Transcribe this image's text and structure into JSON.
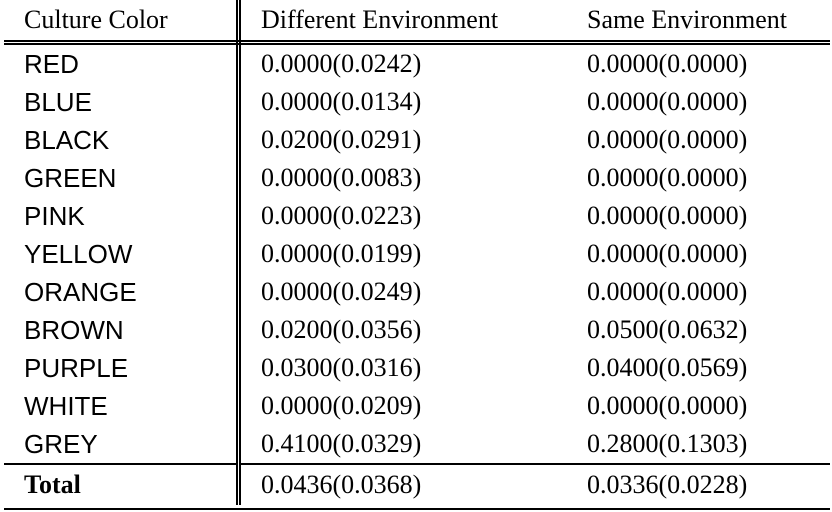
{
  "table": {
    "headers": [
      "Culture Color",
      "Different Environment",
      "Same Environment"
    ],
    "rows": [
      {
        "color": "RED",
        "different": "0.0000(0.0242)",
        "same": "0.0000(0.0000)"
      },
      {
        "color": "BLUE",
        "different": "0.0000(0.0134)",
        "same": "0.0000(0.0000)"
      },
      {
        "color": "BLACK",
        "different": "0.0200(0.0291)",
        "same": "0.0000(0.0000)"
      },
      {
        "color": "GREEN",
        "different": "0.0000(0.0083)",
        "same": "0.0000(0.0000)"
      },
      {
        "color": "PINK",
        "different": "0.0000(0.0223)",
        "same": "0.0000(0.0000)"
      },
      {
        "color": "YELLOW",
        "different": "0.0000(0.0199)",
        "same": "0.0000(0.0000)"
      },
      {
        "color": "ORANGE",
        "different": "0.0000(0.0249)",
        "same": "0.0000(0.0000)"
      },
      {
        "color": "BROWN",
        "different": "0.0200(0.0356)",
        "same": "0.0500(0.0632)"
      },
      {
        "color": "PURPLE",
        "different": "0.0300(0.0316)",
        "same": "0.0400(0.0569)"
      },
      {
        "color": "WHITE",
        "different": "0.0000(0.0209)",
        "same": "0.0000(0.0000)"
      },
      {
        "color": "GREY",
        "different": "0.4100(0.0329)",
        "same": "0.2800(0.1303)"
      }
    ],
    "total": {
      "label": "Total",
      "different": "0.0436(0.0368)",
      "same": "0.0336(0.0228)"
    }
  }
}
